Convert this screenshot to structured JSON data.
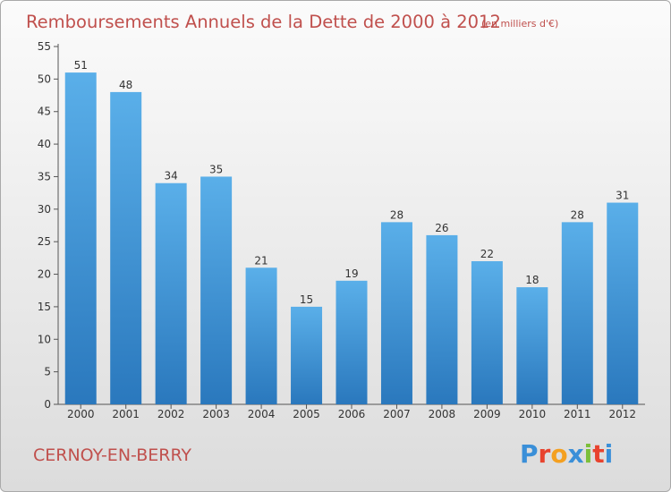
{
  "chart_data": {
    "type": "bar",
    "title": "Remboursements Annuels de la Dette de 2000 à 2012",
    "unit_note": "(en milliers d'€)",
    "categories": [
      "2000",
      "2001",
      "2002",
      "2003",
      "2004",
      "2005",
      "2006",
      "2007",
      "2008",
      "2009",
      "2010",
      "2011",
      "2012"
    ],
    "values": [
      51,
      48,
      34,
      35,
      21,
      15,
      19,
      28,
      26,
      22,
      18,
      28,
      31
    ],
    "ylim": [
      0,
      55
    ],
    "yticks": [
      0,
      5,
      10,
      15,
      20,
      25,
      30,
      35,
      40,
      45,
      50,
      55
    ],
    "grid": false,
    "bar_color": "#4a9fe0",
    "title_color": "#c0504d"
  },
  "place_name": "CERNOY-EN-BERRY",
  "logo": {
    "text": "Proxiti",
    "letter_colors": [
      "#3a8fd8",
      "#e8432e",
      "#f4a020",
      "#3a8fd8",
      "#7cbf3a",
      "#e8432e",
      "#3a8fd8"
    ]
  }
}
